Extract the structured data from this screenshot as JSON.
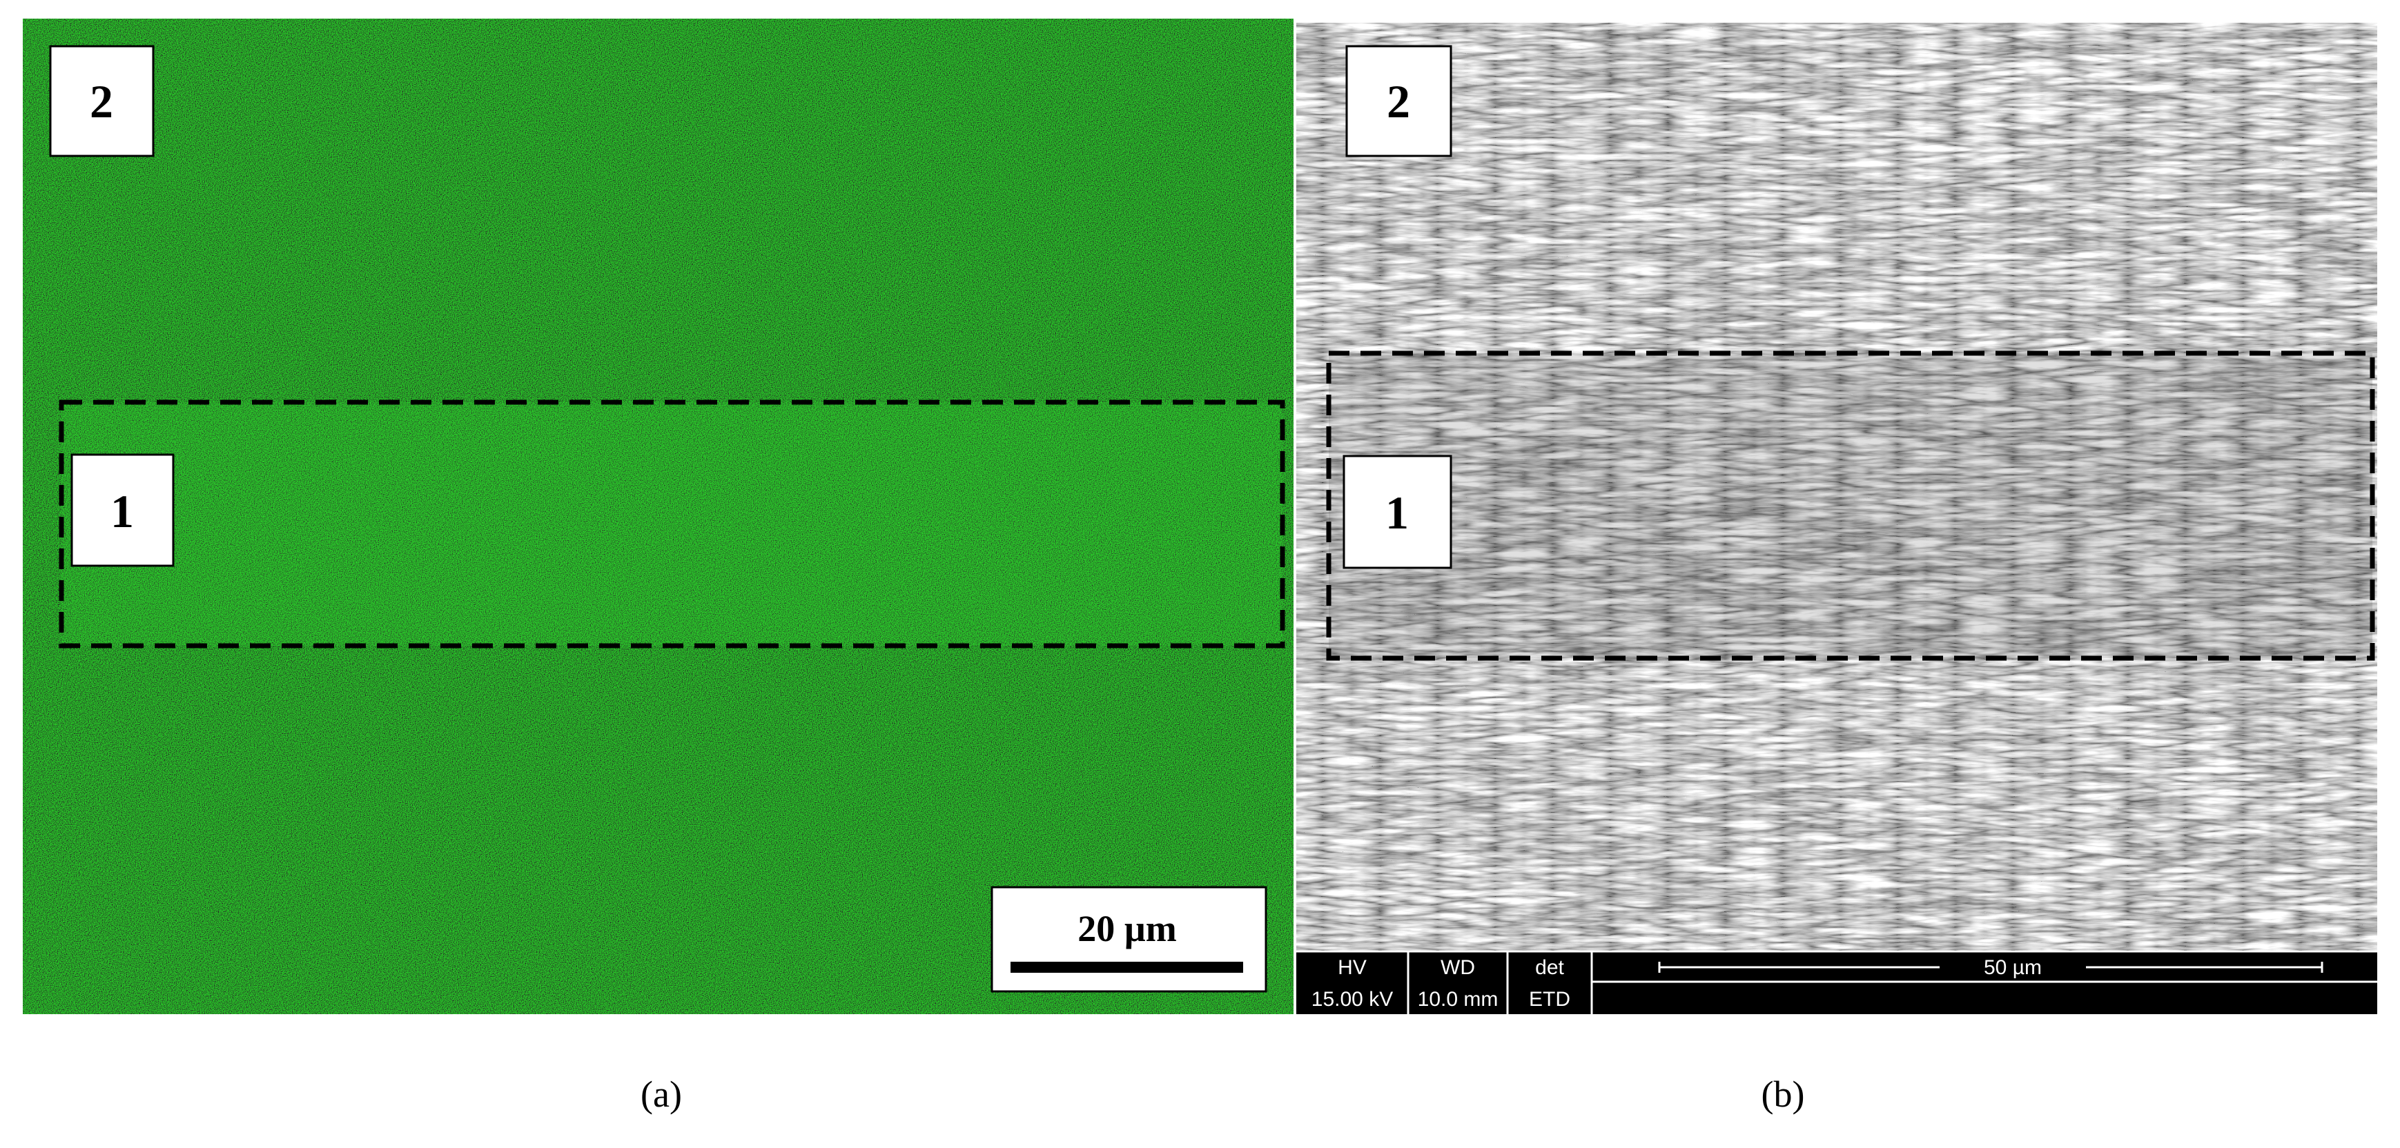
{
  "panels": [
    {
      "label": "(a)",
      "regions": [
        "2",
        "1"
      ],
      "scale_bar": "20 µm"
    },
    {
      "label": "(b)",
      "regions": [
        "2",
        "1"
      ],
      "info_bar": {
        "hv_label": "HV",
        "hv": "15.00 kV",
        "wd_label": "WD",
        "wd": "10.0 mm",
        "det_label": "det",
        "det": "ETD",
        "scale": "50 µm"
      }
    }
  ]
}
